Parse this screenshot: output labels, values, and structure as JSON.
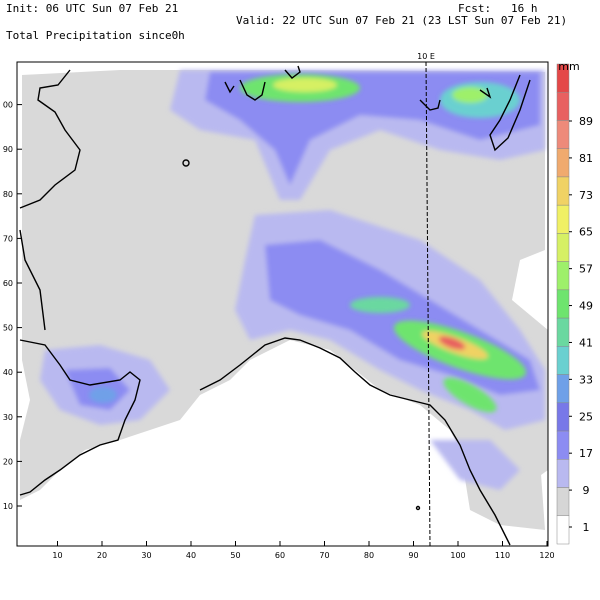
{
  "header": {
    "init": "Init: 06 UTC Sun 07 Feb 21",
    "fcst": "Fcst:   16 h",
    "valid": "Valid: 22 UTC Sun 07 Feb 21 (23 LST Sun 07 Feb 21)",
    "field": "Total Precipitation since0h"
  },
  "map": {
    "meridian_label": "10 E",
    "x_ticks": [
      "10",
      "20",
      "30",
      "40",
      "50",
      "60",
      "70",
      "80",
      "90",
      "100",
      "110",
      "120"
    ],
    "y_ticks": [
      "10",
      "20",
      "30",
      "40",
      "50",
      "60",
      "70",
      "80",
      "90",
      "00"
    ],
    "background_color": "#ffffff",
    "land_no_precip_color": "#d9d9d9"
  },
  "legend": {
    "unit": "mm",
    "labels": [
      "1",
      "9",
      "17",
      "25",
      "33",
      "41",
      "49",
      "57",
      "65",
      "73",
      "81",
      "89"
    ],
    "colors": [
      "#ffffff",
      "#d6d6d6",
      "#b9b9f0",
      "#8c8cf2",
      "#7878e8",
      "#6fa0e8",
      "#6ad0d0",
      "#6ad8a0",
      "#6ee46e",
      "#9ef06a",
      "#d6f064",
      "#f0f064",
      "#f0d264",
      "#f0aa6e",
      "#ee8a7a",
      "#e86060",
      "#e44848"
    ]
  }
}
